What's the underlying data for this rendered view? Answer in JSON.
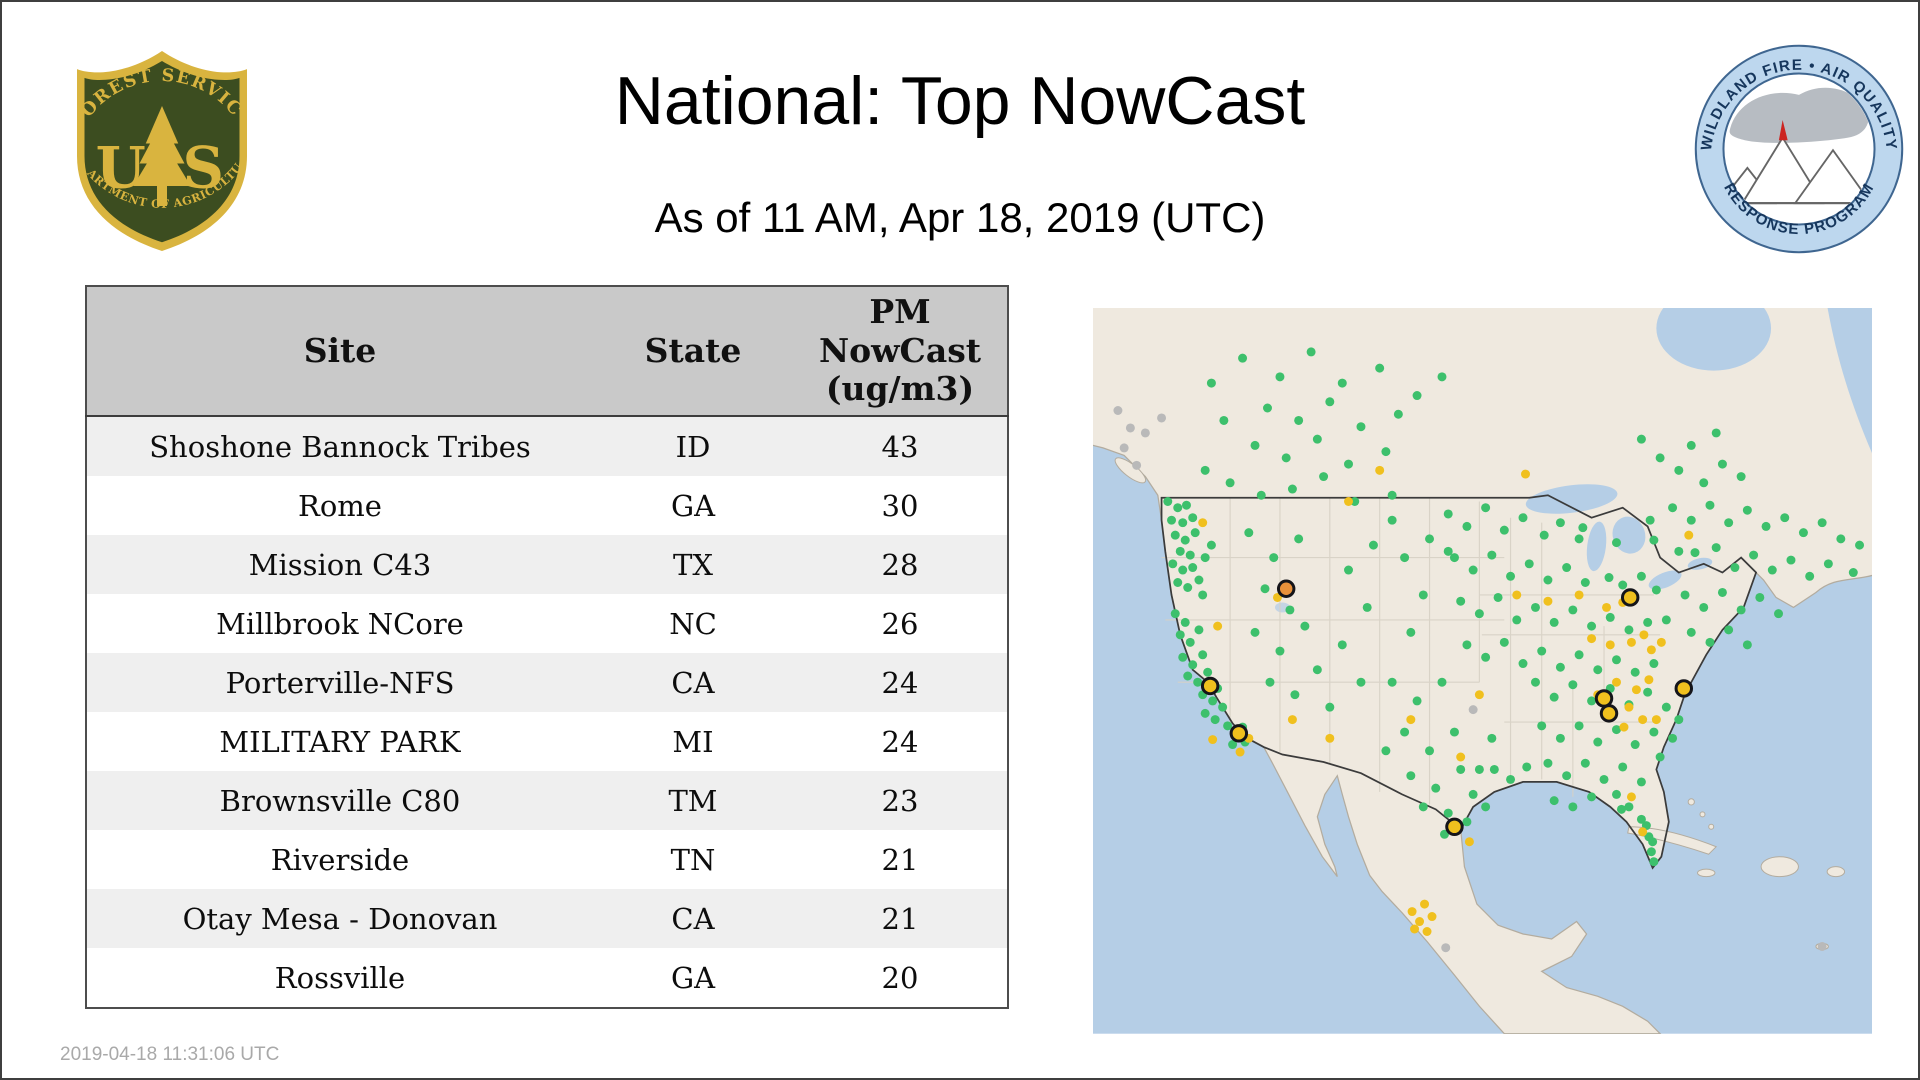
{
  "page": {
    "title": "National: Top NowCast",
    "subtitle": "As of 11 AM, Apr 18, 2019 (UTC)",
    "footer_timestamp": "2019-04-18 11:31:06 UTC"
  },
  "logos": {
    "forest_service": {
      "top_text": "FOREST SERVICE",
      "letter_left": "U",
      "letter_right": "S",
      "bottom_text": "DEPARTMENT OF AGRICULTURE"
    },
    "wfaqrp": {
      "top_text": "WILDLAND FIRE • AIR QUALITY",
      "bottom_text": "RESPONSE PROGRAM"
    }
  },
  "table": {
    "headers": [
      "Site",
      "State",
      "PM NowCast (ug/m3)"
    ],
    "rows": [
      [
        "Shoshone Bannock Tribes",
        "ID",
        "43"
      ],
      [
        "Rome",
        "GA",
        "30"
      ],
      [
        "Mission C43",
        "TX",
        "28"
      ],
      [
        "Millbrook NCore",
        "NC",
        "26"
      ],
      [
        "Porterville-NFS",
        "CA",
        "24"
      ],
      [
        "MILITARY PARK",
        "MI",
        "24"
      ],
      [
        "Brownsville C80",
        "TM",
        "23"
      ],
      [
        "Riverside",
        "TN",
        "21"
      ],
      [
        "Otay Mesa - Donovan",
        "CA",
        "21"
      ],
      [
        "Rossville",
        "GA",
        "20"
      ]
    ]
  },
  "map": {
    "colors": {
      "ocean": "#b5cee6",
      "land": "#efe9df",
      "coast": "#b3ac9f",
      "border": "#3b3b3b",
      "state_line": "#d6d0c4",
      "good": "#3dc06c",
      "moderate": "#f0c01e",
      "orange": "#e8913a",
      "gray": "#b9b9b9",
      "ring": "#15151a"
    },
    "dots": [
      [
        60,
        155,
        "g"
      ],
      [
        68,
        160,
        "g"
      ],
      [
        75,
        158,
        "g"
      ],
      [
        63,
        170,
        "g"
      ],
      [
        72,
        172,
        "g"
      ],
      [
        80,
        168,
        "g"
      ],
      [
        66,
        182,
        "g"
      ],
      [
        74,
        186,
        "g"
      ],
      [
        82,
        180,
        "g"
      ],
      [
        70,
        195,
        "g"
      ],
      [
        78,
        198,
        "g"
      ],
      [
        64,
        205,
        "g"
      ],
      [
        72,
        210,
        "g"
      ],
      [
        80,
        208,
        "g"
      ],
      [
        68,
        220,
        "g"
      ],
      [
        76,
        224,
        "g"
      ],
      [
        85,
        218,
        "g"
      ],
      [
        90,
        200,
        "g"
      ],
      [
        88,
        230,
        "g"
      ],
      [
        95,
        190,
        "g"
      ],
      [
        66,
        245,
        "g"
      ],
      [
        74,
        252,
        "g"
      ],
      [
        70,
        262,
        "g"
      ],
      [
        78,
        268,
        "g"
      ],
      [
        85,
        258,
        "g"
      ],
      [
        72,
        280,
        "g"
      ],
      [
        80,
        286,
        "g"
      ],
      [
        88,
        278,
        "g"
      ],
      [
        76,
        295,
        "g"
      ],
      [
        84,
        300,
        "g"
      ],
      [
        92,
        292,
        "g"
      ],
      [
        88,
        310,
        "g"
      ],
      [
        96,
        315,
        "g"
      ],
      [
        90,
        325,
        "g"
      ],
      [
        98,
        330,
        "g"
      ],
      [
        104,
        320,
        "g"
      ],
      [
        100,
        305,
        "g"
      ],
      [
        108,
        335,
        "g"
      ],
      [
        115,
        342,
        "g"
      ],
      [
        120,
        336,
        "g"
      ],
      [
        112,
        350,
        "g"
      ],
      [
        122,
        348,
        "g"
      ],
      [
        120,
        40,
        "g"
      ],
      [
        150,
        55,
        "g"
      ],
      [
        175,
        35,
        "g"
      ],
      [
        200,
        60,
        "g"
      ],
      [
        230,
        48,
        "g"
      ],
      [
        140,
        80,
        "g"
      ],
      [
        165,
        90,
        "g"
      ],
      [
        190,
        75,
        "g"
      ],
      [
        215,
        95,
        "g"
      ],
      [
        245,
        85,
        "g"
      ],
      [
        130,
        110,
        "g"
      ],
      [
        155,
        120,
        "g"
      ],
      [
        180,
        105,
        "g"
      ],
      [
        205,
        125,
        "g"
      ],
      [
        235,
        115,
        "g"
      ],
      [
        110,
        140,
        "g"
      ],
      [
        135,
        150,
        "g"
      ],
      [
        160,
        145,
        "g"
      ],
      [
        185,
        135,
        "g"
      ],
      [
        210,
        155,
        "g"
      ],
      [
        240,
        150,
        "g"
      ],
      [
        95,
        60,
        "g"
      ],
      [
        105,
        90,
        "g"
      ],
      [
        90,
        130,
        "g"
      ],
      [
        260,
        70,
        "g"
      ],
      [
        280,
        55,
        "g"
      ],
      [
        470,
        130,
        "g"
      ],
      [
        490,
        140,
        "g"
      ],
      [
        505,
        125,
        "g"
      ],
      [
        520,
        135,
        "g"
      ],
      [
        480,
        110,
        "g"
      ],
      [
        500,
        100,
        "g"
      ],
      [
        455,
        120,
        "g"
      ],
      [
        440,
        105,
        "g"
      ],
      [
        125,
        180,
        "g"
      ],
      [
        145,
        200,
        "g"
      ],
      [
        165,
        185,
        "g"
      ],
      [
        138,
        225,
        "g"
      ],
      [
        158,
        242,
        "g"
      ],
      [
        130,
        260,
        "g"
      ],
      [
        150,
        275,
        "g"
      ],
      [
        170,
        255,
        "g"
      ],
      [
        142,
        300,
        "g"
      ],
      [
        162,
        310,
        "g"
      ],
      [
        180,
        290,
        "g"
      ],
      [
        200,
        270,
        "g"
      ],
      [
        190,
        320,
        "g"
      ],
      [
        215,
        300,
        "g"
      ],
      [
        220,
        240,
        "g"
      ],
      [
        205,
        210,
        "g"
      ],
      [
        225,
        190,
        "g"
      ],
      [
        250,
        200,
        "g"
      ],
      [
        265,
        230,
        "g"
      ],
      [
        270,
        185,
        "g"
      ],
      [
        255,
        260,
        "g"
      ],
      [
        240,
        170,
        "g"
      ],
      [
        285,
        195,
        "g"
      ],
      [
        240,
        300,
        "g"
      ],
      [
        260,
        315,
        "g"
      ],
      [
        280,
        300,
        "g"
      ],
      [
        250,
        340,
        "g"
      ],
      [
        270,
        355,
        "g"
      ],
      [
        290,
        340,
        "g"
      ],
      [
        255,
        375,
        "g"
      ],
      [
        275,
        385,
        "g"
      ],
      [
        295,
        370,
        "g"
      ],
      [
        265,
        400,
        "g"
      ],
      [
        285,
        405,
        "g"
      ],
      [
        305,
        390,
        "g"
      ],
      [
        300,
        412,
        "g"
      ],
      [
        315,
        400,
        "g"
      ],
      [
        310,
        370,
        "g"
      ],
      [
        320,
        345,
        "g"
      ],
      [
        235,
        355,
        "g"
      ],
      [
        282,
        422,
        "g"
      ],
      [
        285,
        165,
        "g"
      ],
      [
        300,
        175,
        "g"
      ],
      [
        315,
        160,
        "g"
      ],
      [
        330,
        178,
        "g"
      ],
      [
        345,
        168,
        "g"
      ],
      [
        362,
        182,
        "g"
      ],
      [
        375,
        172,
        "g"
      ],
      [
        390,
        185,
        "g"
      ],
      [
        393,
        176,
        "g"
      ],
      [
        420,
        188,
        "g"
      ],
      [
        447,
        170,
        "g"
      ],
      [
        450,
        186,
        "g"
      ],
      [
        290,
        200,
        "g"
      ],
      [
        305,
        210,
        "g"
      ],
      [
        320,
        198,
        "g"
      ],
      [
        335,
        215,
        "g"
      ],
      [
        350,
        205,
        "g"
      ],
      [
        365,
        218,
        "g"
      ],
      [
        380,
        208,
        "g"
      ],
      [
        395,
        220,
        "g"
      ],
      [
        414,
        216,
        "g"
      ],
      [
        425,
        222,
        "g"
      ],
      [
        440,
        215,
        "g"
      ],
      [
        452,
        226,
        "g"
      ],
      [
        295,
        235,
        "g"
      ],
      [
        310,
        245,
        "g"
      ],
      [
        325,
        232,
        "g"
      ],
      [
        340,
        250,
        "g"
      ],
      [
        355,
        240,
        "g"
      ],
      [
        370,
        252,
        "g"
      ],
      [
        385,
        242,
        "g"
      ],
      [
        400,
        255,
        "g"
      ],
      [
        415,
        248,
        "g"
      ],
      [
        430,
        258,
        "g"
      ],
      [
        445,
        252,
        "g"
      ],
      [
        300,
        270,
        "g"
      ],
      [
        315,
        280,
        "g"
      ],
      [
        330,
        268,
        "g"
      ],
      [
        345,
        285,
        "g"
      ],
      [
        360,
        275,
        "g"
      ],
      [
        375,
        288,
        "g"
      ],
      [
        390,
        278,
        "g"
      ],
      [
        405,
        290,
        "g"
      ],
      [
        420,
        282,
        "g"
      ],
      [
        435,
        292,
        "g"
      ],
      [
        450,
        285,
        "g"
      ],
      [
        465,
        160,
        "g"
      ],
      [
        480,
        170,
        "g"
      ],
      [
        495,
        158,
        "g"
      ],
      [
        510,
        172,
        "g"
      ],
      [
        525,
        162,
        "g"
      ],
      [
        540,
        175,
        "g"
      ],
      [
        555,
        168,
        "g"
      ],
      [
        570,
        180,
        "g"
      ],
      [
        585,
        172,
        "g"
      ],
      [
        600,
        185,
        "g"
      ],
      [
        470,
        195,
        "g"
      ],
      [
        483,
        196,
        "g"
      ],
      [
        500,
        192,
        "g"
      ],
      [
        515,
        208,
        "g"
      ],
      [
        530,
        198,
        "g"
      ],
      [
        545,
        210,
        "g"
      ],
      [
        560,
        202,
        "g"
      ],
      [
        575,
        215,
        "g"
      ],
      [
        590,
        205,
        "g"
      ],
      [
        475,
        230,
        "g"
      ],
      [
        490,
        240,
        "g"
      ],
      [
        505,
        228,
        "g"
      ],
      [
        520,
        242,
        "g"
      ],
      [
        535,
        232,
        "g"
      ],
      [
        550,
        245,
        "g"
      ],
      [
        480,
        260,
        "g"
      ],
      [
        495,
        268,
        "g"
      ],
      [
        510,
        258,
        "g"
      ],
      [
        525,
        270,
        "g"
      ],
      [
        460,
        250,
        "g"
      ],
      [
        615,
        190,
        "g"
      ],
      [
        610,
        212,
        "g"
      ],
      [
        355,
        300,
        "g"
      ],
      [
        370,
        312,
        "g"
      ],
      [
        385,
        302,
        "g"
      ],
      [
        400,
        315,
        "g"
      ],
      [
        415,
        305,
        "g"
      ],
      [
        430,
        318,
        "g"
      ],
      [
        445,
        308,
        "g"
      ],
      [
        460,
        320,
        "g"
      ],
      [
        360,
        335,
        "g"
      ],
      [
        375,
        345,
        "g"
      ],
      [
        390,
        335,
        "g"
      ],
      [
        405,
        348,
        "g"
      ],
      [
        420,
        338,
        "g"
      ],
      [
        435,
        350,
        "g"
      ],
      [
        450,
        340,
        "g"
      ],
      [
        365,
        365,
        "g"
      ],
      [
        380,
        375,
        "g"
      ],
      [
        395,
        365,
        "g"
      ],
      [
        410,
        378,
        "g"
      ],
      [
        425,
        368,
        "g"
      ],
      [
        440,
        380,
        "g"
      ],
      [
        370,
        395,
        "g"
      ],
      [
        385,
        400,
        "g"
      ],
      [
        400,
        392,
        "g"
      ],
      [
        455,
        360,
        "g"
      ],
      [
        465,
        345,
        "g"
      ],
      [
        470,
        330,
        "g"
      ],
      [
        420,
        390,
        "g"
      ],
      [
        430,
        400,
        "g"
      ],
      [
        444,
        415,
        "g"
      ],
      [
        446,
        424,
        "g"
      ],
      [
        440,
        410,
        "g"
      ],
      [
        448,
        436,
        "g"
      ],
      [
        450,
        444,
        "g"
      ],
      [
        449,
        428,
        "g"
      ],
      [
        424,
        402,
        "g"
      ],
      [
        322,
        370,
        "g"
      ],
      [
        335,
        378,
        "g"
      ],
      [
        348,
        368,
        "g"
      ],
      [
        88,
        172,
        "y"
      ],
      [
        100,
        255,
        "y"
      ],
      [
        96,
        346,
        "y"
      ],
      [
        118,
        356,
        "y"
      ],
      [
        125,
        345,
        "y"
      ],
      [
        160,
        330,
        "y"
      ],
      [
        190,
        345,
        "y"
      ],
      [
        230,
        130,
        "y"
      ],
      [
        205,
        155,
        "y"
      ],
      [
        148,
        232,
        "y"
      ],
      [
        255,
        330,
        "y"
      ],
      [
        295,
        360,
        "y"
      ],
      [
        302,
        428,
        "y"
      ],
      [
        310,
        310,
        "y"
      ],
      [
        340,
        230,
        "y"
      ],
      [
        365,
        235,
        "y"
      ],
      [
        390,
        230,
        "y"
      ],
      [
        412,
        240,
        "y"
      ],
      [
        425,
        236,
        "y"
      ],
      [
        400,
        265,
        "y"
      ],
      [
        415,
        270,
        "y"
      ],
      [
        432,
        268,
        "y"
      ],
      [
        442,
        262,
        "y"
      ],
      [
        448,
        274,
        "y"
      ],
      [
        456,
        268,
        "y"
      ],
      [
        420,
        300,
        "y"
      ],
      [
        436,
        306,
        "y"
      ],
      [
        446,
        298,
        "y"
      ],
      [
        430,
        320,
        "y"
      ],
      [
        441,
        330,
        "y"
      ],
      [
        426,
        336,
        "y"
      ],
      [
        452,
        330,
        "y"
      ],
      [
        405,
        310,
        "y"
      ],
      [
        432,
        392,
        "y"
      ],
      [
        441,
        420,
        "y"
      ],
      [
        256,
        484,
        "y"
      ],
      [
        266,
        478,
        "y"
      ],
      [
        262,
        492,
        "y"
      ],
      [
        272,
        488,
        "y"
      ],
      [
        258,
        498,
        "y"
      ],
      [
        268,
        500,
        "y"
      ],
      [
        478,
        182,
        "y"
      ],
      [
        347,
        133,
        "y"
      ],
      [
        20,
        82,
        "x"
      ],
      [
        30,
        96,
        "x"
      ],
      [
        25,
        112,
        "x"
      ],
      [
        42,
        100,
        "x"
      ],
      [
        55,
        88,
        "x"
      ],
      [
        35,
        126,
        "x"
      ],
      [
        283,
        513,
        "x"
      ],
      [
        305,
        322,
        "x"
      ],
      [
        585,
        512,
        "x"
      ]
    ],
    "ringed": [
      [
        155,
        225,
        "o"
      ],
      [
        431,
        232,
        "y"
      ],
      [
        94,
        303,
        "y"
      ],
      [
        117,
        341,
        "y"
      ],
      [
        474,
        305,
        "y"
      ],
      [
        410,
        313,
        "y"
      ],
      [
        414,
        325,
        "y"
      ],
      [
        290,
        416,
        "y"
      ]
    ]
  }
}
